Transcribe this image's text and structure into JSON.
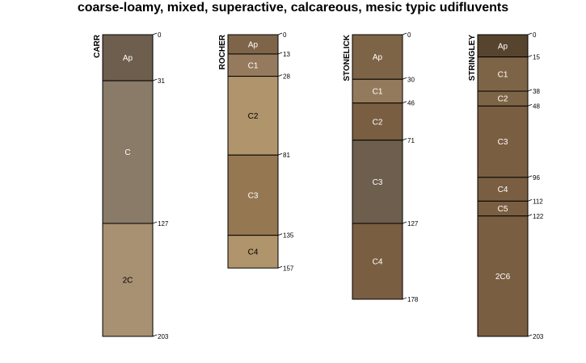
{
  "title": "coarse-loamy, mixed, superactive, calcareous, mesic typic udifluvents",
  "profiles": [
    {
      "name": "CARR",
      "horizons": [
        {
          "name": "Ap",
          "top": 0,
          "bottom": 31,
          "color": "#6e5e4e",
          "label_color": "#ffffff"
        },
        {
          "name": "C",
          "top": 31,
          "bottom": 127,
          "color": "#8a7a68",
          "label_color": "#ffffff"
        },
        {
          "name": "2C",
          "top": 127,
          "bottom": 203,
          "color": "#a89072",
          "label_color": "#000000"
        }
      ]
    },
    {
      "name": "ROCHER",
      "horizons": [
        {
          "name": "Ap",
          "top": 0,
          "bottom": 13,
          "color": "#7e6448",
          "label_color": "#ffffff"
        },
        {
          "name": "C1",
          "top": 13,
          "bottom": 28,
          "color": "#957a5e",
          "label_color": "#ffffff"
        },
        {
          "name": "C2",
          "top": 28,
          "bottom": 81,
          "color": "#b0946c",
          "label_color": "#000000"
        },
        {
          "name": "C3",
          "top": 81,
          "bottom": 135,
          "color": "#957852",
          "label_color": "#ffffff"
        },
        {
          "name": "C4",
          "top": 135,
          "bottom": 157,
          "color": "#b0946c",
          "label_color": "#000000"
        }
      ]
    },
    {
      "name": "STONELICK",
      "horizons": [
        {
          "name": "Ap",
          "top": 0,
          "bottom": 30,
          "color": "#7e6446",
          "label_color": "#ffffff"
        },
        {
          "name": "C1",
          "top": 30,
          "bottom": 46,
          "color": "#947a5c",
          "label_color": "#ffffff"
        },
        {
          "name": "C2",
          "top": 46,
          "bottom": 71,
          "color": "#7a5e42",
          "label_color": "#ffffff"
        },
        {
          "name": "C3",
          "top": 71,
          "bottom": 127,
          "color": "#6e5e4e",
          "label_color": "#ffffff"
        },
        {
          "name": "C4",
          "top": 127,
          "bottom": 178,
          "color": "#7a5e42",
          "label_color": "#ffffff"
        }
      ]
    },
    {
      "name": "STRINGLEY",
      "horizons": [
        {
          "name": "Ap",
          "top": 0,
          "bottom": 15,
          "color": "#56442e",
          "label_color": "#ffffff"
        },
        {
          "name": "C1",
          "top": 15,
          "bottom": 38,
          "color": "#7e6446",
          "label_color": "#ffffff"
        },
        {
          "name": "C2",
          "top": 38,
          "bottom": 48,
          "color": "#7e6446",
          "label_color": "#ffffff"
        },
        {
          "name": "C3",
          "top": 48,
          "bottom": 96,
          "color": "#7a5e42",
          "label_color": "#ffffff"
        },
        {
          "name": "C4",
          "top": 96,
          "bottom": 112,
          "color": "#7a5e42",
          "label_color": "#ffffff"
        },
        {
          "name": "C5",
          "top": 112,
          "bottom": 122,
          "color": "#7a5e42",
          "label_color": "#ffffff"
        },
        {
          "name": "2C6",
          "top": 122,
          "bottom": 203,
          "color": "#7a5e42",
          "label_color": "#ffffff"
        }
      ]
    }
  ]
}
